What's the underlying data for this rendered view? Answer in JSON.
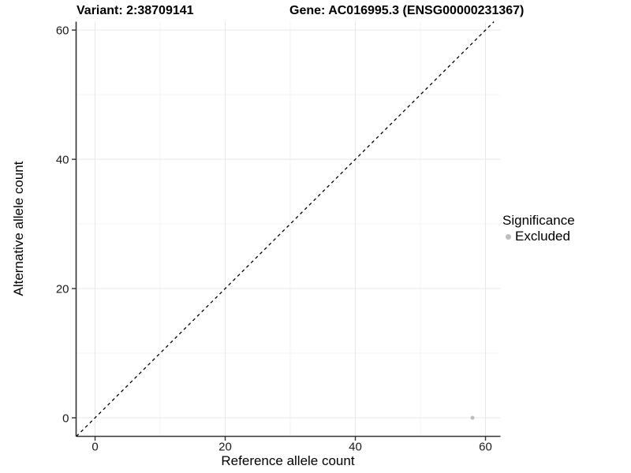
{
  "header": {
    "title_left": "Variant: 2:38709141",
    "title_right": "Gene: AC016995.3 (ENSG00000231367)"
  },
  "axes": {
    "x_title": "Reference allele count",
    "y_title": "Alternative allele count"
  },
  "legend": {
    "title": "Significance",
    "entries": [
      {
        "label": "Excluded",
        "color": "#bebebe",
        "marker": "circle"
      }
    ]
  },
  "chart_data": {
    "type": "scatter",
    "title": "Variant: 2:38709141 / Gene: AC016995.3 (ENSG00000231367)",
    "xlabel": "Reference allele count",
    "ylabel": "Alternative allele count",
    "xlim": [
      -2.91,
      62.3
    ],
    "ylim": [
      -2.87,
      61.3
    ],
    "x_major_ticks": [
      0,
      20,
      40,
      60
    ],
    "y_major_ticks": [
      0,
      20,
      40,
      60
    ],
    "x_minor_ticks": [
      10,
      30,
      50
    ],
    "y_minor_ticks": [
      10,
      30,
      50
    ],
    "grid": "on",
    "legend_position": "right",
    "reference_line": {
      "kind": "identity y=x",
      "style": "dashed",
      "color": "#000000"
    },
    "series": [
      {
        "name": "Excluded",
        "color": "#bebebe",
        "points": [
          {
            "x": 58,
            "y": 0
          }
        ]
      }
    ],
    "colors": {
      "grid_major": "#e8e8e8",
      "grid_minor": "#f3f3f3",
      "axis_line": "#333333",
      "tick_label": "#1a1a1a",
      "point": "#bebebe",
      "reference_line": "#000000"
    }
  }
}
